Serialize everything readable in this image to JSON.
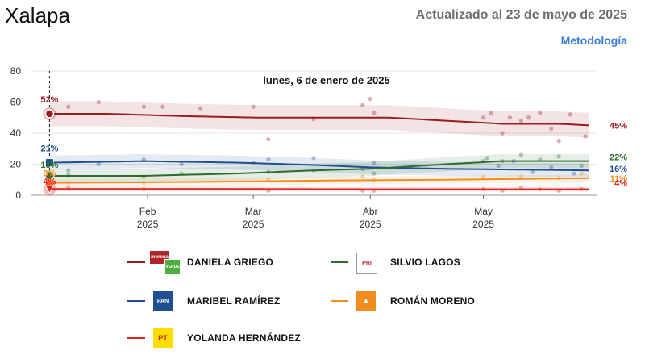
{
  "header": {
    "title": "Xalapa",
    "updated": "Actualizado al 23 de mayo de 2025",
    "methodology": "Metodología"
  },
  "chart_data": {
    "type": "line",
    "title": "",
    "xlabel": "",
    "ylabel": "",
    "ylim": [
      0,
      80
    ],
    "yticks": [
      0,
      20,
      40,
      60,
      80
    ],
    "x_domain": [
      0,
      150
    ],
    "x_ticks": [
      {
        "day": 31,
        "month": "Feb",
        "year": "2025"
      },
      {
        "day": 59,
        "month": "Mar",
        "year": "2025"
      },
      {
        "day": 90,
        "month": "Abr",
        "year": "2025"
      },
      {
        "day": 120,
        "month": "May",
        "year": "2025"
      }
    ],
    "hover_date": "lunes, 6 de enero de 2025",
    "hover_day": 5,
    "series": [
      {
        "name": "DANIELA GRIEGO",
        "color": "#9b1b21",
        "start_label": "52%",
        "end_label": "45%",
        "band": 8,
        "x": [
          5,
          20,
          40,
          60,
          80,
          95,
          110,
          125,
          140,
          148
        ],
        "values": [
          52.5,
          52.5,
          51,
          50,
          50,
          50,
          48,
          46,
          46,
          45
        ]
      },
      {
        "name": "MARIBEL RAMÍREZ",
        "color": "#1d4f91",
        "start_label": "21%",
        "end_label": "16%",
        "band": 4.5,
        "x": [
          5,
          30,
          55,
          75,
          90,
          110,
          130,
          148
        ],
        "values": [
          21,
          22,
          21,
          19.5,
          18,
          17,
          16.5,
          16
        ]
      },
      {
        "name": "SILVIO LAGOS",
        "color": "#2a6d2f",
        "start_label": "13%",
        "end_label": "22%",
        "band": 4.5,
        "x": [
          5,
          30,
          55,
          75,
          90,
          110,
          125,
          148
        ],
        "values": [
          12.5,
          12.5,
          14,
          16,
          17,
          20,
          22,
          22
        ]
      },
      {
        "name": "ROMÁN MORENO",
        "color": "#f28c1f",
        "start_label": "8%",
        "end_label": "11%",
        "band": 2.5,
        "x": [
          5,
          40,
          80,
          110,
          148
        ],
        "values": [
          8,
          8.5,
          9.5,
          10,
          11
        ]
      },
      {
        "name": "YOLANDA HERNÁNDEZ",
        "color": "#e0251b",
        "start_label": "4%",
        "end_label": "4%",
        "band": 1.5,
        "x": [
          5,
          60,
          100,
          148
        ],
        "values": [
          4,
          4,
          3.8,
          3.8
        ]
      }
    ],
    "polls": [
      {
        "series": 0,
        "x": [
          10,
          18,
          30,
          35,
          45,
          59,
          63,
          75,
          88,
          90,
          91,
          120,
          122,
          125,
          127,
          130,
          132,
          135,
          138,
          140,
          143,
          147
        ],
        "values": [
          57,
          60,
          57,
          57,
          56,
          57,
          36,
          49,
          58,
          62,
          53,
          50,
          53,
          40,
          50,
          48,
          50,
          53,
          43,
          35,
          52,
          38
        ]
      },
      {
        "series": 1,
        "x": [
          10,
          18,
          30,
          40,
          59,
          63,
          75,
          88,
          91,
          120,
          124,
          128,
          133,
          138,
          144
        ],
        "values": [
          16,
          20,
          23,
          20,
          21,
          23,
          24,
          17,
          21,
          22,
          19,
          22,
          15,
          18,
          14
        ]
      },
      {
        "series": 2,
        "x": [
          10,
          30,
          40,
          63,
          75,
          91,
          121,
          125,
          130,
          135,
          140,
          146
        ],
        "values": [
          13,
          12,
          14,
          15,
          16,
          14,
          24,
          22,
          26,
          23,
          25,
          19
        ]
      },
      {
        "series": 3,
        "x": [
          10,
          30,
          63,
          88,
          91,
          120,
          130,
          140,
          146
        ],
        "values": [
          8,
          8,
          10,
          12,
          10,
          12,
          12,
          11,
          14
        ]
      },
      {
        "series": 4,
        "x": [
          10,
          30,
          63,
          88,
          91,
          120,
          125,
          130,
          135,
          140,
          146
        ],
        "values": [
          5,
          4,
          3,
          3,
          3,
          4,
          3,
          5,
          4,
          3,
          4
        ]
      }
    ]
  },
  "legend": [
    {
      "name": "DANIELA GRIEGO",
      "color": "#9b1b21",
      "logo": "morena-verde-logo",
      "logo_text": [
        "morena",
        "VERDE"
      ]
    },
    {
      "name": "SILVIO LAGOS",
      "color": "#2a6d2f",
      "logo": "pri-logo",
      "logo_text": [
        "PRI"
      ]
    },
    {
      "name": "MARIBEL RAMÍREZ",
      "color": "#1d4f91",
      "logo": "pan-logo",
      "logo_text": [
        "PAN"
      ]
    },
    {
      "name": "ROMÁN MORENO",
      "color": "#f28c1f",
      "logo": "mc-logo",
      "logo_text": [
        ""
      ]
    },
    {
      "name": "YOLANDA HERNÁNDEZ",
      "color": "#e0251b",
      "logo": "pt-logo",
      "logo_text": [
        "PT"
      ]
    }
  ]
}
